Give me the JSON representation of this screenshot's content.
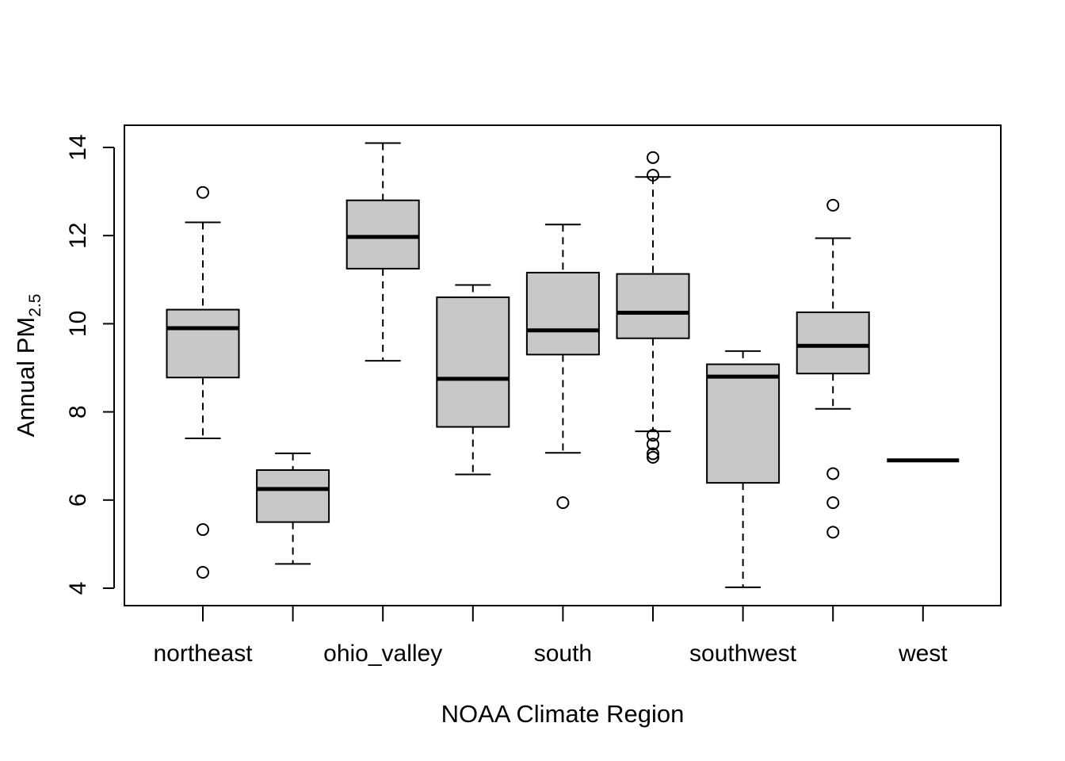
{
  "chart_data": {
    "type": "boxplot",
    "title": "",
    "xlabel": "NOAA Climate Region",
    "ylabel": {
      "main": "Annual PM",
      "subscript": "2.5"
    },
    "ylim": [
      3.6,
      14.5
    ],
    "yticks": [
      4,
      6,
      8,
      10,
      12,
      14
    ],
    "grid": false,
    "legend": "none",
    "colors": {
      "box_fill": "#c8c8c8",
      "stroke": "#000000",
      "background": "#ffffff"
    },
    "categories": [
      "northeast",
      "",
      "ohio_valley",
      "",
      "south",
      "",
      "southwest",
      "",
      "west"
    ],
    "boxes": [
      {
        "whisker_low": 7.4,
        "q1": 8.78,
        "median": 9.9,
        "q3": 10.32,
        "whisker_high": 12.3,
        "outliers": [
          12.98,
          5.33,
          4.36
        ]
      },
      {
        "whisker_low": 4.55,
        "q1": 5.5,
        "median": 6.25,
        "q3": 6.68,
        "whisker_high": 7.06,
        "outliers": []
      },
      {
        "whisker_low": 9.16,
        "q1": 11.25,
        "median": 11.97,
        "q3": 12.8,
        "whisker_high": 14.1,
        "outliers": []
      },
      {
        "whisker_low": 6.58,
        "q1": 7.66,
        "median": 8.75,
        "q3": 10.6,
        "whisker_high": 10.88,
        "outliers": []
      },
      {
        "whisker_low": 7.07,
        "q1": 9.3,
        "median": 9.85,
        "q3": 11.16,
        "whisker_high": 12.25,
        "outliers": [
          5.94
        ]
      },
      {
        "whisker_low": 7.56,
        "q1": 9.67,
        "median": 10.25,
        "q3": 11.13,
        "whisker_high": 13.33,
        "outliers": [
          13.77,
          13.37,
          7.47,
          7.27,
          7.05,
          6.97
        ]
      },
      {
        "whisker_low": 4.02,
        "q1": 6.39,
        "median": 8.8,
        "q3": 9.08,
        "whisker_high": 9.38,
        "outliers": []
      },
      {
        "whisker_low": 8.07,
        "q1": 8.87,
        "median": 9.5,
        "q3": 10.26,
        "whisker_high": 11.94,
        "outliers": [
          12.69,
          6.6,
          5.94,
          5.27
        ]
      },
      {
        "whisker_low": 6.9,
        "q1": 6.9,
        "median": 6.9,
        "q3": 6.9,
        "whisker_high": 6.9,
        "outliers": []
      }
    ]
  }
}
